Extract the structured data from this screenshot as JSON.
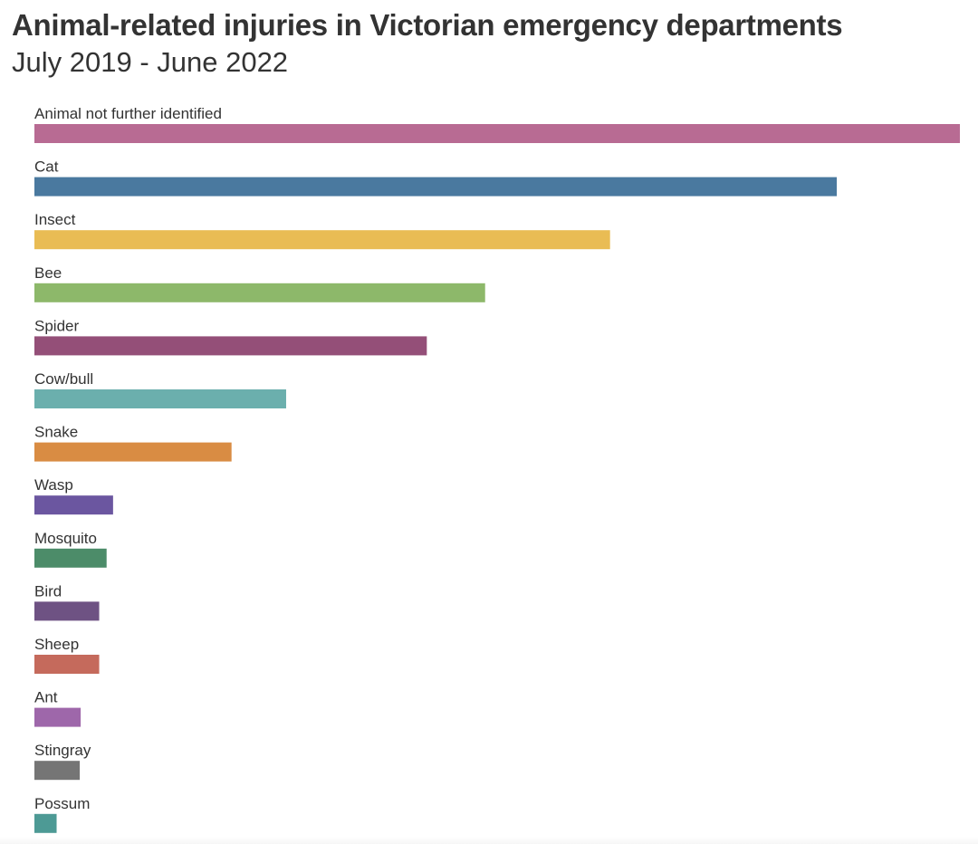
{
  "title": "Animal-related injuries in Victorian emergency departments",
  "subtitle": "July 2019 - June 2022",
  "chart_data": {
    "type": "bar",
    "orientation": "horizontal",
    "title": "Animal-related injuries in Victorian emergency departments",
    "subtitle": "July 2019 - June 2022",
    "xlabel": "",
    "ylabel": "",
    "grid": false,
    "categories": [
      "Animal not further identified",
      "Cat",
      "Insect",
      "Bee",
      "Spider",
      "Cow/bull",
      "Snake",
      "Wasp",
      "Mosquito",
      "Bird",
      "Sheep",
      "Ant",
      "Stingray",
      "Possum"
    ],
    "values": [
      1000,
      867,
      622,
      487,
      424,
      272,
      213,
      85,
      78,
      70,
      70,
      50,
      49,
      24
    ],
    "colors": [
      "#b86b93",
      "#4a799f",
      "#e9bc54",
      "#8db86a",
      "#944f78",
      "#6bafad",
      "#d98c43",
      "#6b56a0",
      "#4c8c69",
      "#6e5283",
      "#c56a5c",
      "#9e67aa",
      "#757575",
      "#4d9a95"
    ]
  }
}
